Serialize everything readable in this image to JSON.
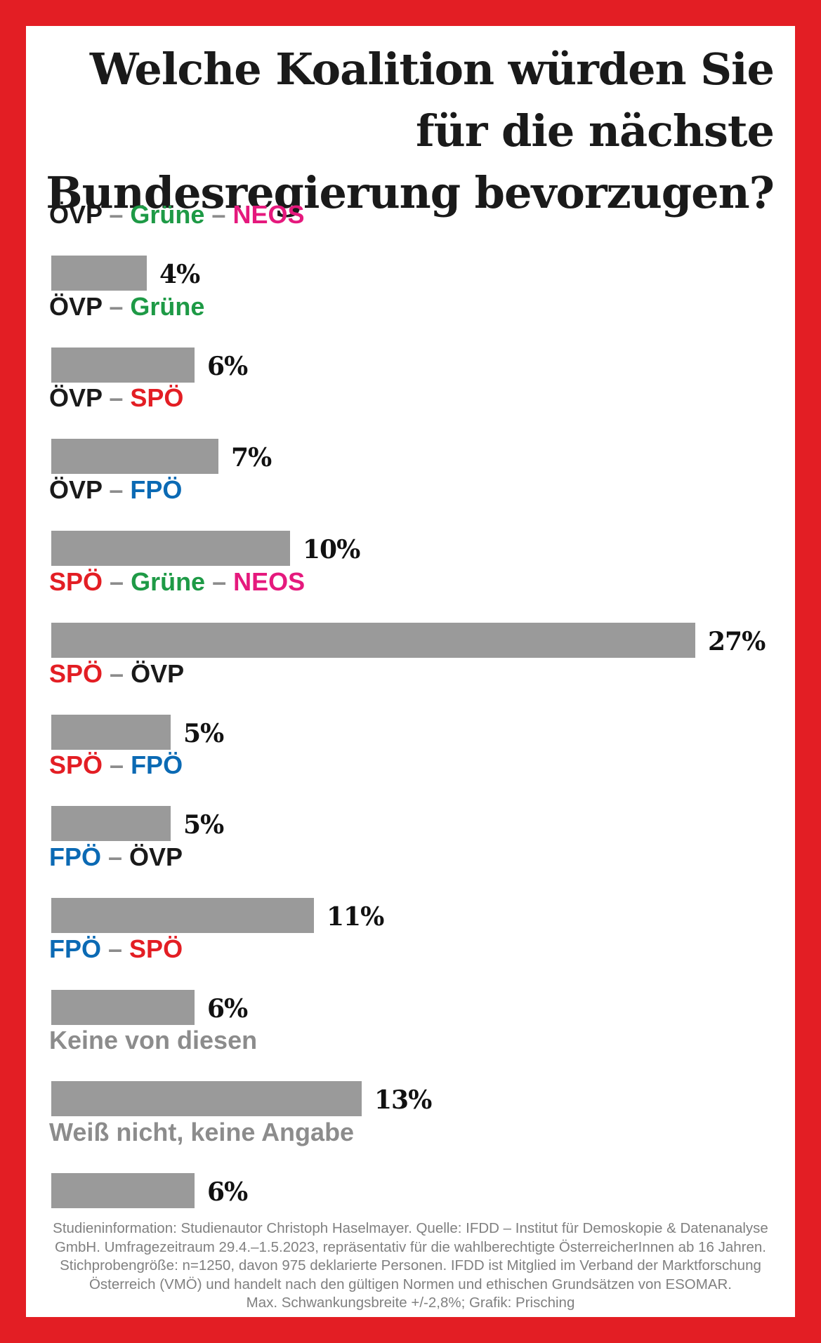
{
  "title": "Welche Koalition würden Sie für die nächste Bundesregierung bevorzugen?",
  "colors": {
    "frame": "#e31e24",
    "bar": "#9a9a9a",
    "ÖVP": "#1a1a1a",
    "Grüne": "#1e9a46",
    "NEOS": "#e5197d",
    "SPÖ": "#e31e24",
    "FPÖ": "#0b6ab4",
    "neutral": "#8c8c8c",
    "separator": "#8c8c8c"
  },
  "chart_data": {
    "type": "bar",
    "orientation": "horizontal",
    "title": "Welche Koalition würden Sie für die nächste Bundesregierung bevorzugen?",
    "xlim": [
      0,
      27
    ],
    "categories": [
      "ÖVP – Grüne – NEOS",
      "ÖVP – Grüne",
      "ÖVP – SPÖ",
      "ÖVP – FPÖ",
      "SPÖ – Grüne – NEOS",
      "SPÖ – ÖVP",
      "SPÖ – FPÖ",
      "FPÖ – ÖVP",
      "FPÖ – SPÖ",
      "Keine von diesen",
      "Weiß nicht, keine Angabe"
    ],
    "values": [
      4,
      6,
      7,
      10,
      27,
      5,
      5,
      11,
      6,
      13,
      6
    ],
    "value_labels": [
      "4%",
      "6%",
      "7%",
      "10%",
      "27%",
      "5%",
      "5%",
      "11%",
      "6%",
      "13%",
      "6%"
    ],
    "label_parties": [
      [
        "ÖVP",
        "Grüne",
        "NEOS"
      ],
      [
        "ÖVP",
        "Grüne"
      ],
      [
        "ÖVP",
        "SPÖ"
      ],
      [
        "ÖVP",
        "FPÖ"
      ],
      [
        "SPÖ",
        "Grüne",
        "NEOS"
      ],
      [
        "SPÖ",
        "ÖVP"
      ],
      [
        "SPÖ",
        "FPÖ"
      ],
      [
        "FPÖ",
        "ÖVP"
      ],
      [
        "FPÖ",
        "SPÖ"
      ],
      [
        "Keine von diesen"
      ],
      [
        "Weiß nicht, keine Angabe"
      ]
    ],
    "separator": "–",
    "unit": "%"
  },
  "footer": {
    "line1": "Studieninformation: Studienautor Christoph Haselmayer. Quelle: IFDD – Institut für Demoskopie & Datenanalyse",
    "line2": "GmbH. Umfragezeitraum 29.4.–1.5.2023, repräsentativ für die wahlberechtigte ÖsterreicherInnen ab 16 Jahren.",
    "line3": "Stichprobengröße: n=1250, davon 975 deklarierte Personen. IFDD ist Mitglied im Verband der Marktforschung",
    "line4": "Österreich (VMÖ) und handelt nach den gültigen Normen und ethischen Grundsätzen von ESOMAR.",
    "line5": "Max. Schwankungsbreite +/-2,8%; Grafik: Prisching"
  }
}
